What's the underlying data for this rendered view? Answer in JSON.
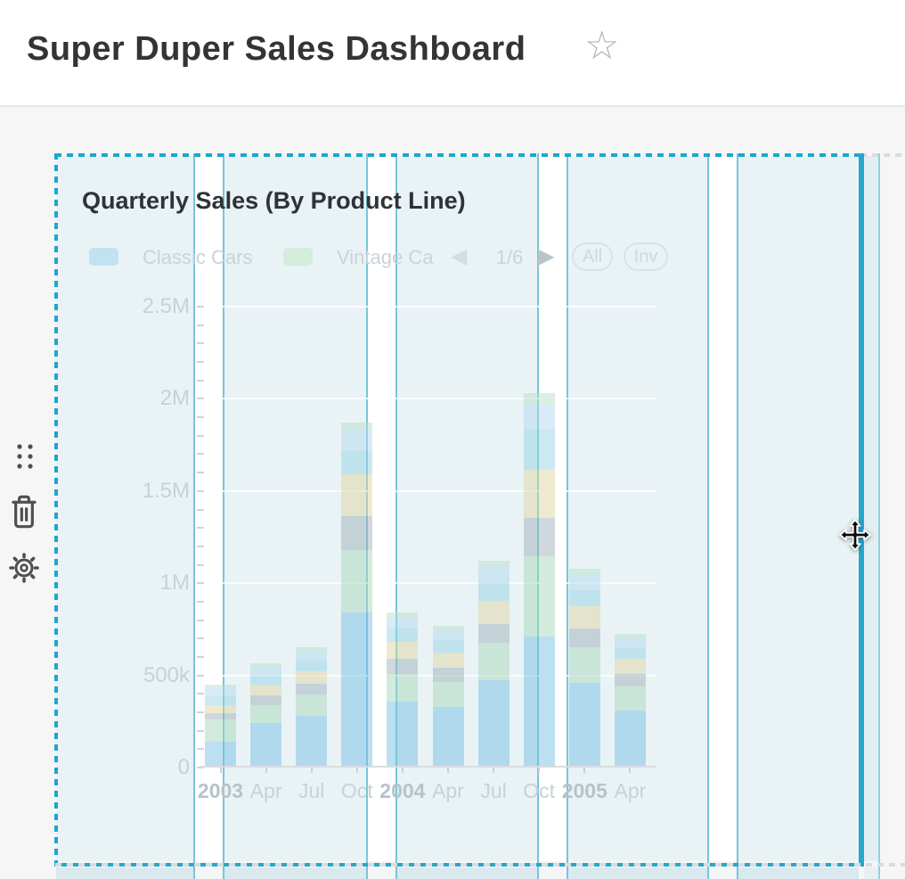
{
  "header": {
    "title": "Super Duper Sales Dashboard",
    "favorite_icon": "star-outline",
    "favorite_glyph": "☆"
  },
  "widget": {
    "title": "Quarterly Sales (By Product Line)",
    "state": "selected-dragging",
    "toolbar_icons": [
      "drag-handle",
      "trash",
      "settings"
    ],
    "legend": {
      "items": [
        {
          "label": "Classic Cars",
          "swatch_color": "#c3e2ef"
        },
        {
          "label": "Vintage Ca",
          "swatch_color": "#d3ecdc"
        }
      ],
      "pager": {
        "prev_glyph": "◀",
        "page": "1/6",
        "next_glyph": "▶"
      },
      "buttons": [
        {
          "label": "All"
        },
        {
          "label": "Inv"
        }
      ]
    }
  },
  "chart_data": {
    "type": "bar",
    "stacked": true,
    "title": "Quarterly Sales (By Product Line)",
    "categories": [
      "2003",
      "Apr",
      "Jul",
      "Oct",
      "2004",
      "Apr",
      "Jul",
      "Oct",
      "2005",
      "Apr"
    ],
    "y_tick_labels": [
      "2.5M",
      "2M",
      "1.5M",
      "1M",
      "500k",
      "0"
    ],
    "ylim": [
      0,
      2500000
    ],
    "grid": true,
    "legend_position": "top",
    "series": [
      {
        "name": "Classic Cars",
        "color": "rgba(121,191,227,0.5)",
        "values": [
          130000,
          230000,
          270000,
          832000,
          350000,
          320000,
          465000,
          701000,
          450000,
          300000
        ]
      },
      {
        "name": "Vintage Ca",
        "color": "rgba(168,216,185,0.5)",
        "values": [
          120000,
          100000,
          115000,
          339000,
          150000,
          135000,
          200000,
          435000,
          195000,
          130000
        ]
      },
      {
        "name": "",
        "color": "rgba(160,177,186,0.5)",
        "values": [
          35000,
          50000,
          60000,
          184000,
          80000,
          75000,
          105000,
          208000,
          100000,
          70000
        ]
      },
      {
        "name": "",
        "color": "rgba(221,214,160,0.5)",
        "values": [
          45000,
          60000,
          70000,
          227000,
          95000,
          85000,
          125000,
          261000,
          120000,
          80000
        ]
      },
      {
        "name": "",
        "color": "rgba(150,211,228,0.5)",
        "values": [
          50000,
          50000,
          55000,
          126000,
          70000,
          65000,
          95000,
          218000,
          90000,
          60000
        ]
      },
      {
        "name": "",
        "color": "rgba(180,216,238,0.5)",
        "values": [
          40000,
          45000,
          50000,
          117000,
          60000,
          55000,
          85000,
          135000,
          80000,
          52000
        ]
      },
      {
        "name": "",
        "color": "rgba(183,224,198,0.5)",
        "values": [
          20000,
          21000,
          23000,
          36000,
          27000,
          24000,
          35000,
          62000,
          35000,
          24000
        ]
      }
    ],
    "bar_totals": [
      440000,
      556000,
      643000,
      1861000,
      832000,
      759000,
      1110000,
      2020000,
      1070000,
      716000
    ]
  },
  "editor": {
    "accent_color": "#28a6cc",
    "guide_line_color": "#76c6d9",
    "selection_tint": "#e9f3f6",
    "cursor": "move-cursor"
  }
}
